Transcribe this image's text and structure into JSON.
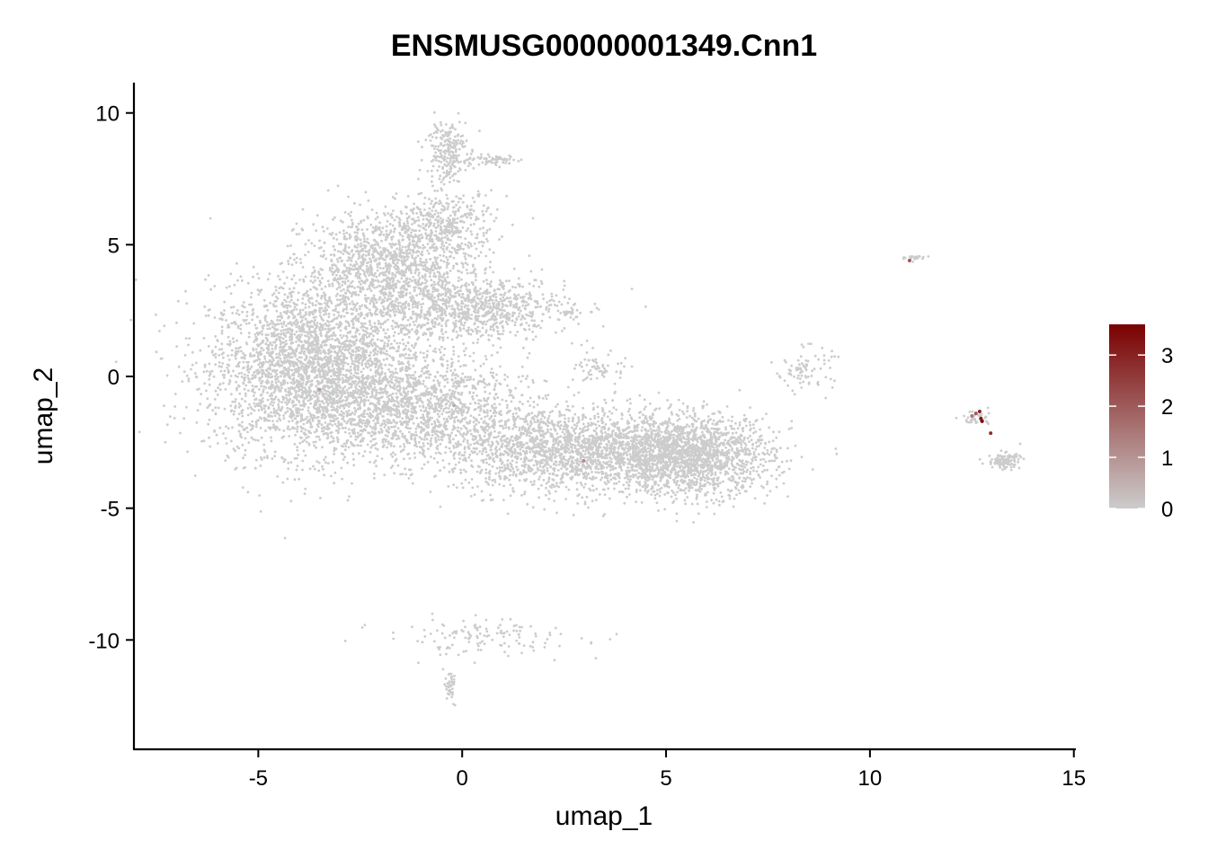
{
  "chart_data": {
    "type": "scatter",
    "title": "ENSMUSG00000001349.Cnn1",
    "xlabel": "umap_1",
    "ylabel": "umap_2",
    "xlim": [
      -8.05,
      15.05
    ],
    "ylim": [
      -14.15,
      11.15
    ],
    "xticks": [
      -5,
      0,
      5,
      10,
      15
    ],
    "yticks": [
      -10,
      -5,
      0,
      5,
      10
    ],
    "grid": false,
    "colors": {
      "low": "#CCCCCC",
      "high": "#7A0000"
    },
    "legend": {
      "position": "right",
      "type": "colorbar",
      "range": [
        0,
        3.6
      ],
      "ticks": [
        0,
        1,
        2,
        3
      ]
    },
    "clusters_unexpressed": [
      {
        "cx": -3.6,
        "cy": 0.3,
        "sx": 1.3,
        "sy": 1.6,
        "n": 3200
      },
      {
        "cx": -1.8,
        "cy": 4.2,
        "sx": 1.0,
        "sy": 1.0,
        "n": 1200
      },
      {
        "cx": -0.4,
        "cy": 5.8,
        "sx": 0.6,
        "sy": 0.6,
        "n": 350
      },
      {
        "cx": 0.2,
        "cy": 2.6,
        "sx": 1.2,
        "sy": 0.6,
        "n": 900
      },
      {
        "cx": -1.0,
        "cy": -1.3,
        "sx": 1.3,
        "sy": 1.0,
        "n": 1300
      },
      {
        "cx": 2.6,
        "cy": -2.8,
        "sx": 1.4,
        "sy": 0.8,
        "n": 1800
      },
      {
        "cx": 5.6,
        "cy": -3.0,
        "sx": 1.0,
        "sy": 0.75,
        "n": 1800
      },
      {
        "cx": -0.4,
        "cy": 8.6,
        "sx": 0.25,
        "sy": 0.6,
        "n": 220
      },
      {
        "cx": 0.7,
        "cy": 8.2,
        "sx": 0.35,
        "sy": 0.1,
        "n": 60
      },
      {
        "cx": 2.7,
        "cy": 2.4,
        "sx": 0.12,
        "sy": 0.06,
        "n": 15
      },
      {
        "cx": 3.4,
        "cy": 0.3,
        "sx": 0.3,
        "sy": 0.3,
        "n": 60
      },
      {
        "cx": 8.4,
        "cy": 0.3,
        "sx": 0.35,
        "sy": 0.4,
        "n": 80
      },
      {
        "cx": 11.1,
        "cy": 4.5,
        "sx": 0.12,
        "sy": 0.06,
        "n": 25
      },
      {
        "cx": 12.6,
        "cy": -1.6,
        "sx": 0.2,
        "sy": 0.15,
        "n": 40
      },
      {
        "cx": 13.3,
        "cy": -3.2,
        "sx": 0.2,
        "sy": 0.15,
        "n": 110
      },
      {
        "cx": 0.5,
        "cy": -9.9,
        "sx": 1.2,
        "sy": 0.35,
        "n": 130
      },
      {
        "cx": -0.3,
        "cy": -11.8,
        "sx": 0.08,
        "sy": 0.3,
        "n": 40
      }
    ],
    "points_expressed": [
      {
        "x": -3.5,
        "y": -0.5,
        "value": 0.8
      },
      {
        "x": -0.2,
        "y": -1.1,
        "value": 0.6
      },
      {
        "x": 2.98,
        "y": -3.2,
        "value": 1.2
      },
      {
        "x": 10.97,
        "y": 4.4,
        "value": 2.0
      },
      {
        "x": 12.5,
        "y": -1.5,
        "value": 1.5
      },
      {
        "x": 12.6,
        "y": -1.4,
        "value": 2.0
      },
      {
        "x": 12.69,
        "y": -1.33,
        "value": 3.0
      },
      {
        "x": 12.72,
        "y": -1.6,
        "value": 3.2
      },
      {
        "x": 12.75,
        "y": -1.7,
        "value": 3.5
      },
      {
        "x": 12.96,
        "y": -2.15,
        "value": 2.8
      }
    ]
  }
}
